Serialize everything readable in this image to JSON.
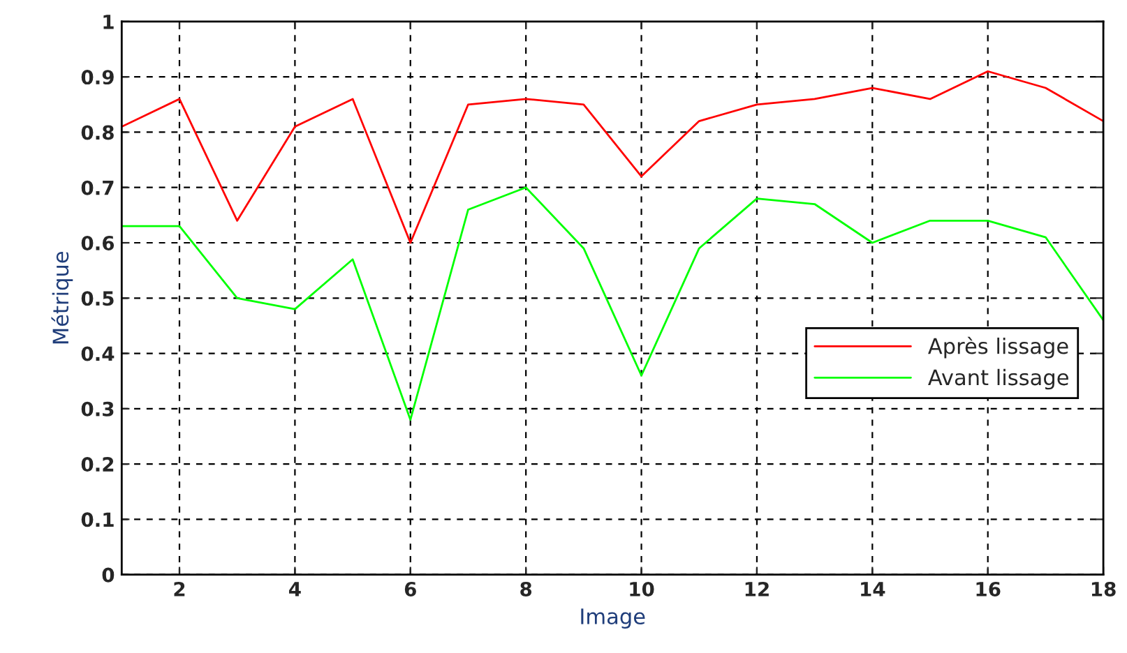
{
  "chart_data": {
    "type": "line",
    "xlabel": "Image",
    "ylabel": "Métrique",
    "x": [
      1,
      2,
      3,
      4,
      5,
      6,
      7,
      8,
      9,
      10,
      11,
      12,
      13,
      14,
      15,
      16,
      17,
      18
    ],
    "series": [
      {
        "name": "Après lissage",
        "color": "#ff0000",
        "values": [
          0.81,
          0.86,
          0.64,
          0.81,
          0.86,
          0.6,
          0.85,
          0.86,
          0.85,
          0.72,
          0.82,
          0.85,
          0.86,
          0.88,
          0.86,
          0.91,
          0.88,
          0.82
        ]
      },
      {
        "name": "Avant lissage",
        "color": "#00ff00",
        "values": [
          0.63,
          0.63,
          0.5,
          0.48,
          0.57,
          0.28,
          0.66,
          0.7,
          0.59,
          0.36,
          0.59,
          0.68,
          0.67,
          0.6,
          0.64,
          0.64,
          0.61,
          0.46
        ]
      }
    ],
    "xlim": [
      1,
      18
    ],
    "xticks": [
      2,
      4,
      6,
      8,
      10,
      12,
      14,
      16,
      18
    ],
    "ylim": [
      0,
      1
    ],
    "yticks": [
      0,
      0.1,
      0.2,
      0.3,
      0.4,
      0.5,
      0.6,
      0.7,
      0.8,
      0.9,
      1
    ],
    "grid": true,
    "legend": "right",
    "line_style": "solid",
    "marker": "none"
  }
}
